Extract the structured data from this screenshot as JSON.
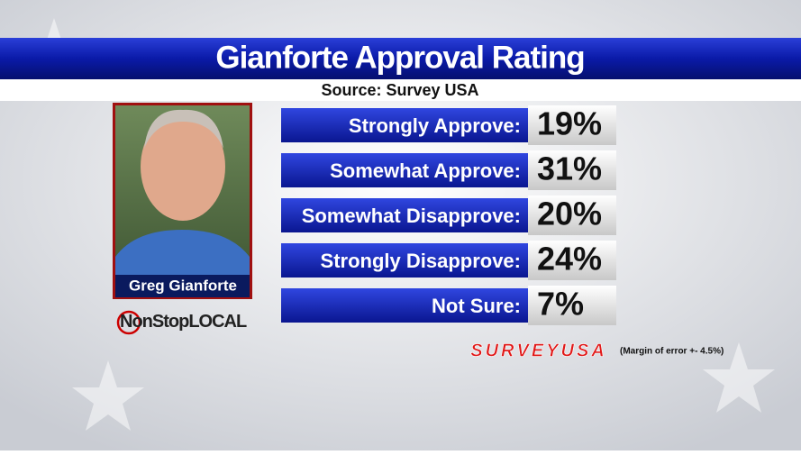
{
  "header": {
    "title": "Gianforte Approval Rating",
    "source": "Source: Survey USA"
  },
  "candidate": {
    "name": "Greg Gianforte"
  },
  "station_logo": {
    "part1": "NonStop",
    "part2": "LOCAL"
  },
  "table": {
    "rows": [
      {
        "label": "Strongly Approve:",
        "value": "19%"
      },
      {
        "label": "Somewhat Approve:",
        "value": "31%"
      },
      {
        "label": "Somewhat Disapprove:",
        "value": "20%"
      },
      {
        "label": "Strongly Disapprove:",
        "value": "24%"
      },
      {
        "label": "Not Sure:",
        "value": "7%"
      }
    ]
  },
  "pollster_logo": "SURVEYUSA",
  "footnote": "(Margin of error +- 4.5%)"
}
